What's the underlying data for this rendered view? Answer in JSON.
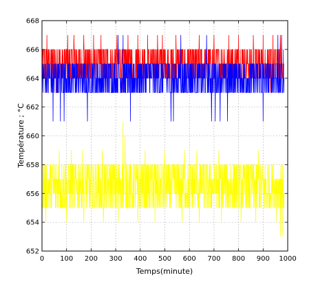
{
  "chart_data": {
    "type": "line",
    "title": "",
    "xlabel": "Temps(minute)",
    "ylabel": "Température ; °C",
    "xlim": [
      0,
      1000
    ],
    "ylim": [
      652,
      668
    ],
    "xticks": [
      0,
      100,
      200,
      300,
      400,
      500,
      600,
      700,
      800,
      900,
      1000
    ],
    "yticks": [
      652,
      654,
      656,
      658,
      660,
      662,
      664,
      666,
      668
    ],
    "grid": true,
    "legend": "none",
    "series": [
      {
        "color": "#ff0000",
        "x_range": [
          0,
          985
        ],
        "band": [
          664,
          666
        ],
        "spikes_up": [
          [
            20,
            667
          ],
          [
            105,
            667
          ],
          [
            130,
            667
          ],
          [
            170,
            667
          ],
          [
            210,
            667
          ],
          [
            240,
            667
          ],
          [
            305,
            667
          ],
          [
            350,
            667
          ],
          [
            390,
            667
          ],
          [
            430,
            667
          ],
          [
            470,
            667
          ],
          [
            490,
            667
          ],
          [
            545,
            667
          ],
          [
            640,
            667
          ],
          [
            700,
            667
          ],
          [
            760,
            667
          ],
          [
            800,
            667
          ],
          [
            860,
            667
          ],
          [
            900,
            667
          ],
          [
            940,
            667
          ],
          [
            970,
            667
          ]
        ],
        "spikes_down": [
          [
            60,
            663
          ],
          [
            150,
            663
          ],
          [
            260,
            663
          ],
          [
            330,
            663
          ],
          [
            420,
            663
          ],
          [
            520,
            663
          ],
          [
            610,
            663
          ],
          [
            690,
            663
          ],
          [
            780,
            663
          ],
          [
            850,
            663
          ],
          [
            930,
            663
          ]
        ]
      },
      {
        "color": "#0000ff",
        "x_range": [
          0,
          985
        ],
        "band": [
          663,
          665
        ],
        "spikes_up": [
          [
            310,
            667
          ],
          [
            330,
            667
          ],
          [
            565,
            667
          ],
          [
            670,
            667
          ],
          [
            960,
            667
          ],
          [
            975,
            667
          ]
        ],
        "spikes_down": [
          [
            45,
            661
          ],
          [
            75,
            661
          ],
          [
            90,
            661
          ],
          [
            185,
            661
          ],
          [
            360,
            661
          ],
          [
            525,
            661
          ],
          [
            535,
            661
          ],
          [
            690,
            661
          ],
          [
            705,
            661
          ],
          [
            725,
            661
          ],
          [
            755,
            661
          ],
          [
            900,
            661
          ]
        ]
      },
      {
        "color": "#ffff00",
        "x_range": [
          0,
          985
        ],
        "band": [
          655,
          658
        ],
        "spikes_up": [
          [
            70,
            659
          ],
          [
            120,
            659
          ],
          [
            165,
            659
          ],
          [
            245,
            659
          ],
          [
            330,
            661
          ],
          [
            338,
            660
          ],
          [
            420,
            659
          ],
          [
            500,
            659
          ],
          [
            580,
            659
          ],
          [
            630,
            659
          ],
          [
            720,
            659
          ],
          [
            880,
            659
          ]
        ],
        "spikes_down": [
          [
            15,
            654
          ],
          [
            100,
            654
          ],
          [
            170,
            654
          ],
          [
            250,
            654
          ],
          [
            310,
            654
          ],
          [
            390,
            654
          ],
          [
            460,
            654
          ],
          [
            570,
            654
          ],
          [
            640,
            654
          ],
          [
            730,
            654
          ],
          [
            810,
            654
          ],
          [
            870,
            654
          ],
          [
            955,
            654
          ],
          [
            970,
            653
          ],
          [
            980,
            653
          ]
        ]
      }
    ]
  }
}
